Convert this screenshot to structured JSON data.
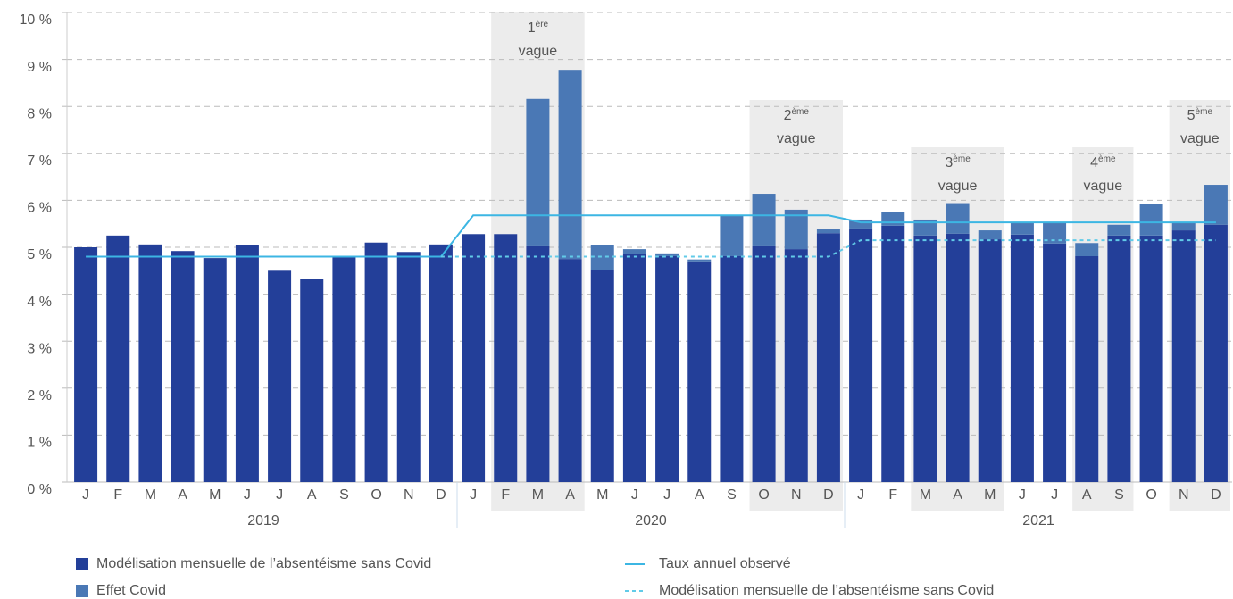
{
  "chart_data": {
    "type": "bar",
    "stacked": true,
    "categories": [
      "J",
      "F",
      "M",
      "A",
      "M",
      "J",
      "J",
      "A",
      "S",
      "O",
      "N",
      "D",
      "J",
      "F",
      "M",
      "A",
      "M",
      "J",
      "J",
      "A",
      "S",
      "O",
      "N",
      "D",
      "J",
      "F",
      "M",
      "A",
      "M",
      "J",
      "J",
      "A",
      "S",
      "O",
      "N",
      "D"
    ],
    "groups": [
      "2019",
      "2020",
      "2021"
    ],
    "ylim": [
      0,
      10
    ],
    "yticks": [
      {
        "value": 0,
        "label": "0 %"
      },
      {
        "value": 1,
        "label": "1 %"
      },
      {
        "value": 2,
        "label": "2 %"
      },
      {
        "value": 3,
        "label": "3 %"
      },
      {
        "value": 4,
        "label": "4 %"
      },
      {
        "value": 5,
        "label": "5 %"
      },
      {
        "value": 6,
        "label": "6 %"
      },
      {
        "value": 7,
        "label": "7 %"
      },
      {
        "value": 8,
        "label": "8 %"
      },
      {
        "value": 9,
        "label": "9 %"
      },
      {
        "value": 10,
        "label": "10 %"
      }
    ],
    "grid": true,
    "series": [
      {
        "name": "Modélisation mensuelle de l’absentéisme sans Covid",
        "kind": "bar",
        "color": "#233f99",
        "values": [
          5.0,
          5.25,
          5.06,
          4.92,
          4.77,
          5.04,
          4.5,
          4.33,
          4.8,
          5.1,
          4.9,
          5.06,
          5.28,
          5.28,
          5.02,
          4.75,
          4.52,
          4.85,
          4.81,
          4.7,
          4.81,
          5.02,
          4.96,
          5.3,
          5.4,
          5.46,
          5.25,
          5.29,
          5.17,
          5.27,
          5.08,
          4.81,
          5.25,
          5.25,
          5.36,
          5.48
        ]
      },
      {
        "name": "Effet Covid",
        "kind": "bar",
        "color": "#4a78b5",
        "values": [
          0,
          0,
          0,
          0,
          0,
          0,
          0,
          0,
          0,
          0,
          0,
          0,
          0,
          0,
          3.14,
          4.03,
          0.52,
          0.11,
          0.06,
          0.04,
          0.88,
          1.12,
          0.84,
          0.08,
          0.19,
          0.3,
          0.34,
          0.65,
          0.19,
          0.27,
          0.44,
          0.28,
          0.23,
          0.68,
          0.17,
          0.85
        ]
      },
      {
        "name": "Taux annuel observé",
        "kind": "line",
        "color": "#3cb6e3",
        "dashed": false,
        "values": [
          4.8,
          4.8,
          4.8,
          4.8,
          4.8,
          4.8,
          4.8,
          4.8,
          4.8,
          4.8,
          4.8,
          4.8,
          5.68,
          5.68,
          5.68,
          5.68,
          5.68,
          5.68,
          5.68,
          5.68,
          5.68,
          5.68,
          5.68,
          5.68,
          5.53,
          5.53,
          5.53,
          5.53,
          5.53,
          5.53,
          5.53,
          5.53,
          5.53,
          5.53,
          5.53,
          5.53
        ]
      },
      {
        "name": "Modélisation mensuelle de l’absentéisme sans Covid",
        "kind": "line",
        "color": "#62cbe8",
        "dashed": true,
        "values": [
          null,
          null,
          null,
          null,
          null,
          null,
          null,
          null,
          null,
          null,
          null,
          4.8,
          4.8,
          4.8,
          4.8,
          4.8,
          4.8,
          4.8,
          4.8,
          4.8,
          4.8,
          4.8,
          4.8,
          4.8,
          5.15,
          5.15,
          5.15,
          5.15,
          5.15,
          5.15,
          5.15,
          5.15,
          5.15,
          5.15,
          5.15,
          5.15
        ]
      }
    ],
    "annotations": [
      {
        "text": "1",
        "sup": "ère",
        "line2": "vague",
        "from": 13,
        "to": 15
      },
      {
        "text": "2",
        "sup": "ème",
        "line2": "vague",
        "from": 21,
        "to": 23
      },
      {
        "text": "3",
        "sup": "ème",
        "line2": "vague",
        "from": 26,
        "to": 28
      },
      {
        "text": "4",
        "sup": "ème",
        "line2": "vague",
        "from": 31,
        "to": 32
      },
      {
        "text": "5",
        "sup": "ème",
        "line2": "vague",
        "from": 34,
        "to": 35
      }
    ]
  }
}
